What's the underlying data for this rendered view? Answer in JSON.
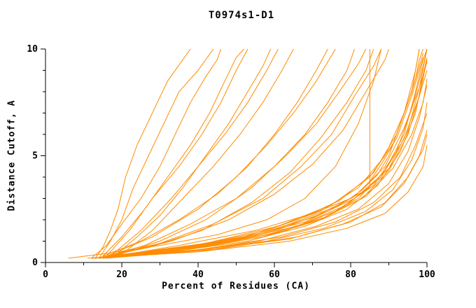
{
  "chart_data": {
    "type": "line",
    "title": "T0974s1-D1",
    "xlabel": "Percent of Residues (CA)",
    "ylabel": "Distance Cutoff, A",
    "xlim": [
      0,
      100
    ],
    "ylim": [
      0,
      10
    ],
    "x_major_ticks": [
      0,
      20,
      40,
      60,
      80,
      100
    ],
    "x_minor_step": 10,
    "y_major_ticks": [
      0,
      5,
      10
    ],
    "y_minor_step": 1,
    "grid": false,
    "legend": "none",
    "line_color": "#ff8c00",
    "axis_color": "#000000",
    "series": [
      [
        [
          13,
          0.2
        ],
        [
          15,
          0.7
        ],
        [
          17,
          1.5
        ],
        [
          19,
          2.5
        ],
        [
          21,
          4
        ],
        [
          24,
          5.5
        ],
        [
          28,
          7
        ],
        [
          32,
          8.5
        ],
        [
          36,
          9.5
        ],
        [
          38,
          10
        ]
      ],
      [
        [
          14,
          0.2
        ],
        [
          17,
          1
        ],
        [
          20,
          2
        ],
        [
          23,
          3.5
        ],
        [
          27,
          5
        ],
        [
          31,
          6.5
        ],
        [
          35,
          8
        ],
        [
          40,
          9
        ],
        [
          44,
          10
        ]
      ],
      [
        [
          12,
          0.2
        ],
        [
          16,
          0.8
        ],
        [
          20,
          1.8
        ],
        [
          25,
          3
        ],
        [
          30,
          4.5
        ],
        [
          34,
          6
        ],
        [
          38,
          7.5
        ],
        [
          42,
          8.7
        ],
        [
          45,
          9.5
        ],
        [
          46,
          10
        ]
      ],
      [
        [
          15,
          0.3
        ],
        [
          20,
          1.2
        ],
        [
          26,
          2.5
        ],
        [
          32,
          4
        ],
        [
          38,
          5.5
        ],
        [
          43,
          7
        ],
        [
          47,
          8.5
        ],
        [
          50,
          9.6
        ],
        [
          52,
          10
        ]
      ],
      [
        [
          16,
          0.3
        ],
        [
          22,
          1.5
        ],
        [
          28,
          3
        ],
        [
          35,
          4.5
        ],
        [
          41,
          6
        ],
        [
          46,
          7.5
        ],
        [
          50,
          9
        ],
        [
          53,
          10
        ]
      ],
      [
        [
          18,
          0.3
        ],
        [
          24,
          1.2
        ],
        [
          30,
          2.2
        ],
        [
          36,
          3.5
        ],
        [
          42,
          5
        ],
        [
          48,
          6.5
        ],
        [
          53,
          8
        ],
        [
          57,
          9.2
        ],
        [
          59,
          10
        ]
      ],
      [
        [
          17,
          0.3
        ],
        [
          25,
          1.5
        ],
        [
          33,
          3
        ],
        [
          40,
          4.5
        ],
        [
          47,
          6
        ],
        [
          53,
          7.5
        ],
        [
          58,
          9
        ],
        [
          61,
          10
        ]
      ],
      [
        [
          20,
          0.4
        ],
        [
          28,
          1.5
        ],
        [
          36,
          3
        ],
        [
          44,
          4.5
        ],
        [
          51,
          6
        ],
        [
          57,
          7.5
        ],
        [
          62,
          9
        ],
        [
          65,
          10
        ]
      ],
      [
        [
          15,
          0.3
        ],
        [
          25,
          1
        ],
        [
          35,
          2
        ],
        [
          45,
          3.2
        ],
        [
          53,
          4.5
        ],
        [
          60,
          6
        ],
        [
          66,
          7.5
        ],
        [
          71,
          9
        ],
        [
          74,
          10
        ]
      ],
      [
        [
          16,
          0.3
        ],
        [
          28,
          1.2
        ],
        [
          40,
          2.5
        ],
        [
          50,
          4
        ],
        [
          58,
          5.5
        ],
        [
          65,
          7
        ],
        [
          71,
          8.5
        ],
        [
          76,
          10
        ]
      ],
      [
        [
          14,
          0.2
        ],
        [
          26,
          0.8
        ],
        [
          38,
          1.8
        ],
        [
          50,
          3
        ],
        [
          60,
          4.5
        ],
        [
          68,
          6
        ],
        [
          74,
          7.5
        ],
        [
          79,
          9
        ],
        [
          81,
          10
        ]
      ],
      [
        [
          18,
          0.3
        ],
        [
          30,
          1
        ],
        [
          42,
          2
        ],
        [
          54,
          3.5
        ],
        [
          63,
          5
        ],
        [
          71,
          6.5
        ],
        [
          77,
          8
        ],
        [
          82,
          9.3
        ],
        [
          84,
          10
        ]
      ],
      [
        [
          13,
          0.2
        ],
        [
          27,
          0.7
        ],
        [
          41,
          1.5
        ],
        [
          54,
          2.8
        ],
        [
          64,
          4.2
        ],
        [
          72,
          5.8
        ],
        [
          79,
          7.5
        ],
        [
          84,
          9
        ],
        [
          86,
          10
        ]
      ],
      [
        [
          16,
          0.3
        ],
        [
          30,
          0.9
        ],
        [
          44,
          1.8
        ],
        [
          57,
          3
        ],
        [
          67,
          4.5
        ],
        [
          75,
          6
        ],
        [
          81,
          7.8
        ],
        [
          86,
          9.2
        ],
        [
          88,
          10
        ]
      ],
      [
        [
          15,
          0.2
        ],
        [
          35,
          0.8
        ],
        [
          55,
          1.5
        ],
        [
          70,
          2.3
        ],
        [
          80,
          3
        ],
        [
          85,
          3.5
        ],
        [
          85,
          10
        ]
      ],
      [
        [
          17,
          0.3
        ],
        [
          33,
          1
        ],
        [
          48,
          2
        ],
        [
          60,
          3.2
        ],
        [
          70,
          4.6
        ],
        [
          78,
          6.2
        ],
        [
          84,
          8
        ],
        [
          89,
          9.5
        ],
        [
          90,
          10
        ]
      ],
      [
        [
          12,
          0.2
        ],
        [
          20,
          0.3
        ],
        [
          30,
          0.5
        ],
        [
          40,
          0.7
        ],
        [
          48,
          1
        ],
        [
          56,
          1.3
        ],
        [
          62,
          1.6
        ],
        [
          68,
          2
        ],
        [
          74,
          2.4
        ],
        [
          79,
          2.9
        ],
        [
          83,
          3.4
        ],
        [
          87,
          4.1
        ],
        [
          90,
          5
        ],
        [
          92,
          6
        ],
        [
          94,
          7
        ],
        [
          96,
          8
        ],
        [
          97,
          9
        ],
        [
          98,
          10
        ]
      ],
      [
        [
          13,
          0.2
        ],
        [
          22,
          0.4
        ],
        [
          32,
          0.6
        ],
        [
          42,
          0.85
        ],
        [
          50,
          1.1
        ],
        [
          58,
          1.45
        ],
        [
          64,
          1.8
        ],
        [
          70,
          2.2
        ],
        [
          76,
          2.6
        ],
        [
          81,
          3.1
        ],
        [
          85,
          3.8
        ],
        [
          88,
          4.6
        ],
        [
          91,
          5.5
        ],
        [
          93,
          6.5
        ],
        [
          95,
          7.5
        ],
        [
          97,
          8.6
        ],
        [
          98,
          9.5
        ],
        [
          99,
          10
        ]
      ],
      [
        [
          11,
          0.2
        ],
        [
          28,
          0.4
        ],
        [
          46,
          0.9
        ],
        [
          61,
          1.4
        ],
        [
          73,
          2.1
        ],
        [
          82,
          3
        ],
        [
          89,
          4.3
        ],
        [
          94,
          6
        ],
        [
          97,
          8
        ],
        [
          99,
          9.5
        ],
        [
          100,
          10
        ]
      ],
      [
        [
          14,
          0.2
        ],
        [
          34,
          0.6
        ],
        [
          52,
          1.2
        ],
        [
          66,
          2
        ],
        [
          77,
          2.9
        ],
        [
          86,
          4.2
        ],
        [
          92,
          6
        ],
        [
          96,
          8
        ],
        [
          99,
          9.8
        ]
      ],
      [
        [
          12,
          0.2
        ],
        [
          33,
          0.5
        ],
        [
          53,
          1
        ],
        [
          68,
          1.7
        ],
        [
          79,
          2.5
        ],
        [
          87,
          3.6
        ],
        [
          93,
          5.2
        ],
        [
          97,
          7
        ],
        [
          99,
          8.8
        ],
        [
          100,
          9.6
        ]
      ],
      [
        [
          13,
          0.2
        ],
        [
          35,
          0.7
        ],
        [
          55,
          1.3
        ],
        [
          70,
          2.1
        ],
        [
          81,
          3.1
        ],
        [
          89,
          4.5
        ],
        [
          94,
          6.3
        ],
        [
          98,
          8.2
        ],
        [
          100,
          9.4
        ]
      ],
      [
        [
          15,
          0.2
        ],
        [
          37,
          0.6
        ],
        [
          57,
          1.2
        ],
        [
          72,
          2
        ],
        [
          83,
          3
        ],
        [
          90,
          4.3
        ],
        [
          95,
          6
        ],
        [
          98,
          7.8
        ],
        [
          100,
          9
        ]
      ],
      [
        [
          14,
          0.2
        ],
        [
          36,
          0.5
        ],
        [
          56,
          1
        ],
        [
          71,
          1.7
        ],
        [
          82,
          2.5
        ],
        [
          90,
          3.7
        ],
        [
          95,
          5.2
        ],
        [
          98,
          6.8
        ],
        [
          100,
          8.3
        ]
      ],
      [
        [
          16,
          0.3
        ],
        [
          38,
          0.7
        ],
        [
          58,
          1.3
        ],
        [
          73,
          2.1
        ],
        [
          84,
          3.1
        ],
        [
          91,
          4.4
        ],
        [
          96,
          6
        ],
        [
          99,
          7.5
        ],
        [
          100,
          8.6
        ]
      ],
      [
        [
          13,
          0.2
        ],
        [
          36,
          0.5
        ],
        [
          58,
          1
        ],
        [
          73,
          1.6
        ],
        [
          84,
          2.4
        ],
        [
          91,
          3.4
        ],
        [
          96,
          4.8
        ],
        [
          99,
          6.3
        ],
        [
          100,
          7.5
        ]
      ],
      [
        [
          15,
          0.2
        ],
        [
          40,
          0.6
        ],
        [
          62,
          1.2
        ],
        [
          76,
          1.9
        ],
        [
          86,
          2.8
        ],
        [
          93,
          4
        ],
        [
          97,
          5.5
        ],
        [
          100,
          7
        ]
      ],
      [
        [
          14,
          0.2
        ],
        [
          42,
          0.6
        ],
        [
          64,
          1.1
        ],
        [
          78,
          1.8
        ],
        [
          88,
          2.6
        ],
        [
          94,
          3.7
        ],
        [
          98,
          5
        ],
        [
          100,
          6.2
        ]
      ],
      [
        [
          16,
          0.2
        ],
        [
          44,
          0.6
        ],
        [
          66,
          1.2
        ],
        [
          80,
          1.9
        ],
        [
          89,
          2.8
        ],
        [
          95,
          4
        ],
        [
          99,
          5.3
        ],
        [
          100,
          6
        ]
      ],
      [
        [
          12,
          0.2
        ],
        [
          40,
          0.5
        ],
        [
          64,
          1
        ],
        [
          79,
          1.6
        ],
        [
          89,
          2.3
        ],
        [
          95,
          3.3
        ],
        [
          99,
          4.5
        ],
        [
          100,
          5.5
        ]
      ],
      [
        [
          6,
          0.2
        ],
        [
          15,
          0.4
        ],
        [
          30,
          0.8
        ],
        [
          45,
          1.3
        ],
        [
          58,
          2
        ],
        [
          68,
          3
        ],
        [
          76,
          4.5
        ],
        [
          82,
          6.5
        ],
        [
          86,
          8.5
        ],
        [
          88,
          10
        ]
      ],
      [
        [
          18,
          0.3
        ],
        [
          40,
          0.8
        ],
        [
          58,
          1.5
        ],
        [
          72,
          2.4
        ],
        [
          82,
          3.5
        ],
        [
          89,
          5
        ],
        [
          94,
          7
        ],
        [
          97,
          9
        ],
        [
          98,
          10
        ]
      ],
      [
        [
          20,
          0.3
        ],
        [
          44,
          0.8
        ],
        [
          63,
          1.5
        ],
        [
          76,
          2.4
        ],
        [
          86,
          3.6
        ],
        [
          92,
          5.2
        ],
        [
          96,
          7.2
        ],
        [
          99,
          9.2
        ],
        [
          100,
          10
        ]
      ],
      [
        [
          17,
          0.3
        ],
        [
          42,
          0.9
        ],
        [
          61,
          1.7
        ],
        [
          75,
          2.7
        ],
        [
          85,
          4
        ],
        [
          92,
          5.8
        ],
        [
          96,
          7.8
        ],
        [
          99,
          9.6
        ]
      ],
      [
        [
          19,
          0.3
        ],
        [
          46,
          0.9
        ],
        [
          66,
          1.7
        ],
        [
          79,
          2.7
        ],
        [
          88,
          4
        ],
        [
          94,
          5.8
        ],
        [
          98,
          7.8
        ],
        [
          100,
          9.5
        ]
      ],
      [
        [
          21,
          0.4
        ],
        [
          48,
          1
        ],
        [
          68,
          1.9
        ],
        [
          81,
          3
        ],
        [
          90,
          4.4
        ],
        [
          95,
          6.2
        ],
        [
          98,
          8.2
        ],
        [
          100,
          10
        ]
      ]
    ]
  }
}
